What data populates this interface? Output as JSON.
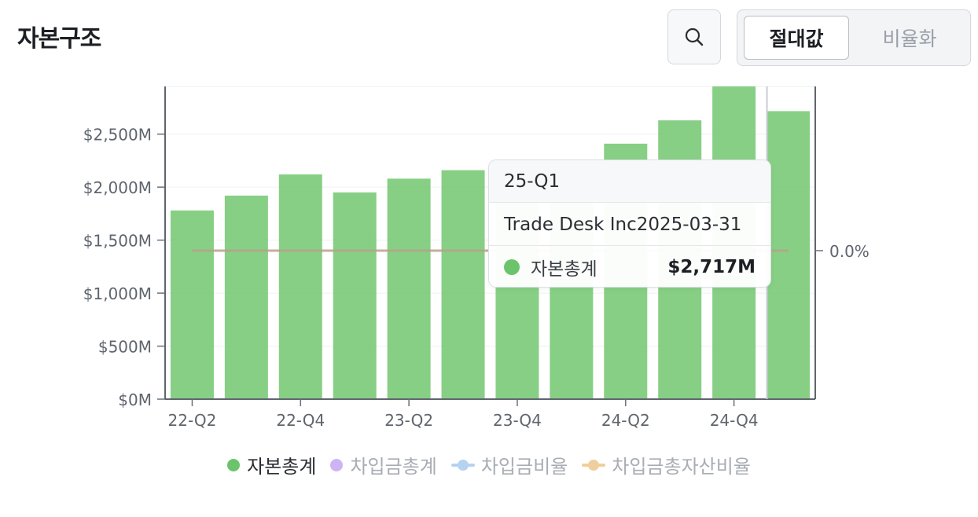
{
  "header": {
    "title": "자본구조",
    "toggle": {
      "active_label": "절대값",
      "inactive_label": "비율화"
    }
  },
  "icons": {
    "search": "search-icon"
  },
  "colors": {
    "equity": "#6cc46a",
    "borrowings": "#cdb5f5",
    "borrowing_ratio": "#b5d3f0",
    "borrowing_to_assets": "#f0cf9e",
    "ratio_line": "#b8a28a"
  },
  "chart_data": {
    "type": "bar",
    "categories": [
      "22-Q2",
      "22-Q3",
      "22-Q4",
      "23-Q1",
      "23-Q2",
      "23-Q3",
      "23-Q4",
      "24-Q1",
      "24-Q2",
      "24-Q3",
      "24-Q4",
      "25-Q1"
    ],
    "x_tick_labels": [
      "22-Q2",
      "22-Q4",
      "23-Q2",
      "23-Q4",
      "24-Q2",
      "24-Q4"
    ],
    "series": [
      {
        "name": "자본총계",
        "values": [
          1780,
          1920,
          2120,
          1950,
          2080,
          2160,
          2200,
          2250,
          2410,
          2630,
          2950,
          2717
        ]
      }
    ],
    "y_ticks": [
      "$0M",
      "$500M",
      "$1,000M",
      "$1,500M",
      "$2,000M",
      "$2,500M"
    ],
    "ylim": [
      0,
      2950
    ],
    "y2_tick": "0.0%",
    "ratio_value": 0.0,
    "legend": [
      "자본총계",
      "차입금총계",
      "차입금비율",
      "차입금총자산비율"
    ],
    "legend_position": "bottom",
    "tooltip": {
      "period": "25-Q1",
      "subtitle": "Trade Desk Inc2025-03-31",
      "series_name": "자본총계",
      "value": "$2,717M"
    }
  }
}
